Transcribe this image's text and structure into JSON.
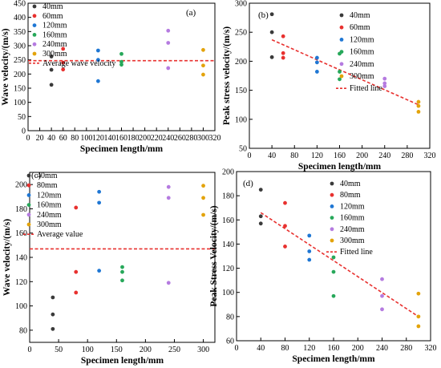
{
  "chart_data": [
    {
      "type": "scatter",
      "panel_label": "(a)",
      "xlabel": "Specimen length/mm",
      "ylabel": "Wave velocity/(m/s)",
      "xlim": [
        0,
        320
      ],
      "ylim": [
        0,
        450
      ],
      "xticks": [
        0,
        20,
        40,
        60,
        80,
        100,
        120,
        140,
        160,
        180,
        200,
        220,
        240,
        260,
        280,
        300,
        320
      ],
      "yticks": [
        0,
        50,
        100,
        150,
        200,
        250,
        300,
        350,
        400,
        450
      ],
      "legend_position": "top-left",
      "series": [
        {
          "name": "40mm",
          "color": "#3a3a3a",
          "points": [
            [
              40,
              162
            ],
            [
              40,
              215
            ],
            [
              40,
              262
            ]
          ]
        },
        {
          "name": "60mm",
          "color": "#e8312f",
          "points": [
            [
              60,
              216
            ],
            [
              60,
              240
            ],
            [
              60,
              289
            ]
          ]
        },
        {
          "name": "120mm",
          "color": "#1f77d4",
          "points": [
            [
              120,
              175
            ],
            [
              120,
              250
            ],
            [
              120,
              283
            ]
          ]
        },
        {
          "name": "160mm",
          "color": "#27a85a",
          "points": [
            [
              160,
              233
            ],
            [
              160,
              243
            ],
            [
              160,
              271
            ]
          ]
        },
        {
          "name": "240mm",
          "color": "#b57be0",
          "points": [
            [
              240,
              221
            ],
            [
              240,
              310
            ],
            [
              240,
              353
            ]
          ]
        },
        {
          "name": "300mm",
          "color": "#e3a30b",
          "points": [
            [
              300,
              198
            ],
            [
              300,
              230
            ],
            [
              300,
              285
            ]
          ]
        }
      ],
      "reference_line": {
        "name": "Average wave velocity",
        "y": 247,
        "color": "#e8312f"
      }
    },
    {
      "type": "scatter",
      "panel_label": "(b)",
      "xlabel": "Specimen length/mm",
      "ylabel": "Peak stress velocity/(m/s)",
      "xlim": [
        0,
        320
      ],
      "ylim": [
        50,
        300
      ],
      "xticks": [
        0,
        40,
        80,
        120,
        160,
        200,
        240,
        280,
        320
      ],
      "yticks": [
        50,
        100,
        150,
        200,
        250,
        300
      ],
      "legend_position": "top-right",
      "series": [
        {
          "name": "40mm",
          "color": "#3a3a3a",
          "points": [
            [
              40,
              207
            ],
            [
              40,
              250
            ],
            [
              40,
              281
            ]
          ]
        },
        {
          "name": "60mm",
          "color": "#e8312f",
          "points": [
            [
              60,
              206
            ],
            [
              60,
              214
            ],
            [
              60,
              243
            ]
          ]
        },
        {
          "name": "120mm",
          "color": "#1f77d4",
          "points": [
            [
              120,
              182
            ],
            [
              120,
              198
            ],
            [
              120,
              206
            ]
          ]
        },
        {
          "name": "160mm",
          "color": "#27a85a",
          "points": [
            [
              160,
              169
            ],
            [
              160,
              182
            ],
            [
              160,
              213
            ]
          ]
        },
        {
          "name": "240mm",
          "color": "#b57be0",
          "points": [
            [
              240,
              157
            ],
            [
              240,
              162
            ],
            [
              240,
              170
            ]
          ]
        },
        {
          "name": "300mm",
          "color": "#e3a30b",
          "points": [
            [
              300,
              113
            ],
            [
              300,
              123
            ],
            [
              300,
              130
            ]
          ]
        }
      ],
      "fitted_line": {
        "name": "Fitted line",
        "from": [
          40,
          237
        ],
        "to": [
          300,
          125
        ],
        "color": "#e8312f"
      }
    },
    {
      "type": "scatter",
      "panel_label": "(c)",
      "xlabel": "Specimen length/mm",
      "ylabel": "Wave velocity/(m/s)",
      "xlim": [
        0,
        320
      ],
      "ylim": [
        70,
        210
      ],
      "xticks": [
        0,
        50,
        100,
        150,
        200,
        250,
        300
      ],
      "yticks": [
        80,
        100,
        120,
        140,
        160,
        180,
        200
      ],
      "legend_position": "top-left",
      "series": [
        {
          "name": "40mm",
          "color": "#3a3a3a",
          "points": [
            [
              40,
              81
            ],
            [
              40,
              93
            ],
            [
              40,
              107
            ]
          ]
        },
        {
          "name": "80mm",
          "color": "#e8312f",
          "points": [
            [
              80,
              111
            ],
            [
              80,
              128
            ],
            [
              80,
              181
            ]
          ]
        },
        {
          "name": "120mm",
          "color": "#1f77d4",
          "points": [
            [
              120,
              129
            ],
            [
              120,
              185
            ],
            [
              120,
              194
            ]
          ]
        },
        {
          "name": "160mm",
          "color": "#27a85a",
          "points": [
            [
              160,
              121
            ],
            [
              160,
              128
            ],
            [
              160,
              132
            ]
          ]
        },
        {
          "name": "240mm",
          "color": "#b57be0",
          "points": [
            [
              240,
              119
            ],
            [
              240,
              189
            ],
            [
              240,
              198
            ]
          ]
        },
        {
          "name": "300mm",
          "color": "#e3a30b",
          "points": [
            [
              300,
              175
            ],
            [
              300,
              189
            ],
            [
              300,
              199
            ]
          ]
        }
      ],
      "reference_line": {
        "name": "Average value",
        "y": 147,
        "color": "#e8312f"
      }
    },
    {
      "type": "scatter",
      "panel_label": "(d)",
      "xlabel": "Specimen length/mm",
      "ylabel": "Peak Stress Velocity/(m/s)",
      "xlim": [
        0,
        320
      ],
      "ylim": [
        60,
        200
      ],
      "xticks": [
        0,
        40,
        80,
        120,
        160,
        200,
        240,
        280,
        320
      ],
      "yticks": [
        60,
        80,
        100,
        120,
        140,
        160,
        180,
        200
      ],
      "legend_position": "top-right",
      "series": [
        {
          "name": "40mm",
          "color": "#3a3a3a",
          "points": [
            [
              40,
              157
            ],
            [
              40,
              163
            ],
            [
              40,
              185
            ]
          ]
        },
        {
          "name": "80mm",
          "color": "#e8312f",
          "points": [
            [
              80,
              138
            ],
            [
              80,
              155
            ],
            [
              80,
              174
            ]
          ]
        },
        {
          "name": "120mm",
          "color": "#1f77d4",
          "points": [
            [
              120,
              127
            ],
            [
              120,
              134
            ],
            [
              120,
              147
            ]
          ]
        },
        {
          "name": "160mm",
          "color": "#27a85a",
          "points": [
            [
              160,
              97
            ],
            [
              160,
              117
            ],
            [
              160,
              129
            ]
          ]
        },
        {
          "name": "240mm",
          "color": "#b57be0",
          "points": [
            [
              240,
              86
            ],
            [
              240,
              97
            ],
            [
              240,
              111
            ]
          ]
        },
        {
          "name": "300mm",
          "color": "#e3a30b",
          "points": [
            [
              300,
              72
            ],
            [
              300,
              80
            ],
            [
              300,
              99
            ]
          ]
        }
      ],
      "fitted_line": {
        "name": "Fitted line",
        "from": [
          40,
          166
        ],
        "to": [
          300,
          80
        ],
        "color": "#e8312f"
      }
    }
  ]
}
